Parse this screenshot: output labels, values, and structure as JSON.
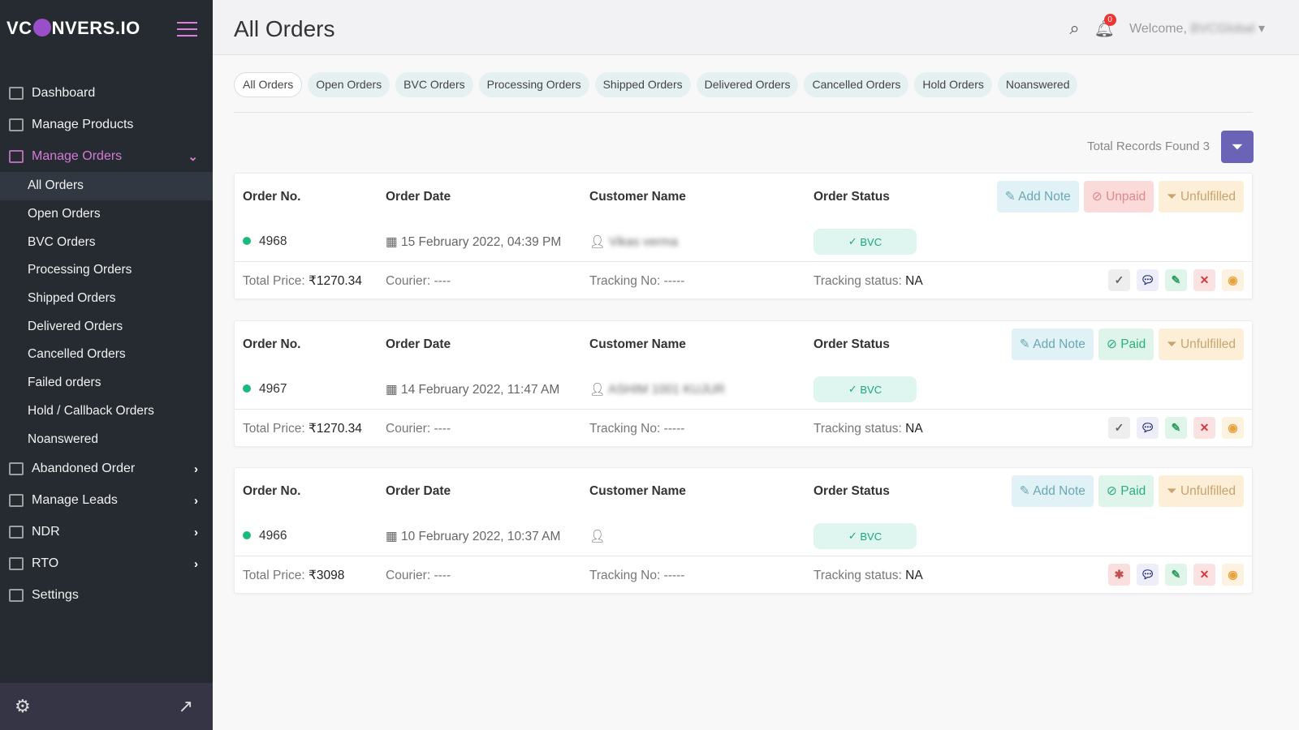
{
  "brand": {
    "logo": "VCONVERS.IO"
  },
  "sidebar": {
    "top": [
      {
        "label": "Dashboard",
        "icon": "dashboard-icon"
      },
      {
        "label": "Manage Products",
        "icon": "products-icon"
      }
    ],
    "orders": {
      "label": "Manage Orders",
      "sub": [
        "All Orders",
        "Open Orders",
        "BVC Orders",
        "Processing Orders",
        "Shipped Orders",
        "Delivered Orders",
        "Cancelled Orders",
        "Failed orders",
        "Hold / Callback Orders",
        "Noanswered"
      ]
    },
    "bottom": [
      {
        "label": "Abandoned Order",
        "chev": true
      },
      {
        "label": "Manage Leads",
        "chev": true
      },
      {
        "label": "NDR",
        "chev": true
      },
      {
        "label": "RTO",
        "chev": true
      },
      {
        "label": "Settings",
        "chev": false
      }
    ]
  },
  "header": {
    "title": "All Orders",
    "welcome": "Welcome,",
    "user": "BVCGlobal",
    "notifications": "0"
  },
  "tabs": [
    "All Orders",
    "Open Orders",
    "BVC Orders",
    "Processing Orders",
    "Shipped Orders",
    "Delivered Orders",
    "Cancelled Orders",
    "Hold Orders",
    "Noanswered"
  ],
  "total_records": "Total Records Found 3",
  "labels": {
    "order_no": "Order No.",
    "order_date": "Order Date",
    "customer": "Customer Name",
    "status": "Order Status",
    "add_note": "Add Note",
    "unfulfilled": "Unfulfilled",
    "total_price": "Total Price:",
    "courier": "Courier:",
    "tracking_no": "Tracking No:",
    "tracking_status": "Tracking status:"
  },
  "orders": [
    {
      "no": "4968",
      "date": "15 February 2022, 04:39 PM",
      "customer": "Vikas verma",
      "status": "BVC",
      "payment": "Unpaid",
      "price": "₹1270.34",
      "courier": "----",
      "tracking": "-----",
      "tracking_status": "NA",
      "first_action": "check"
    },
    {
      "no": "4967",
      "date": "14 February 2022, 11:47 AM",
      "customer": "ASHIM 1001 KUJUR",
      "status": "BVC",
      "payment": "Paid",
      "price": "₹1270.34",
      "courier": "----",
      "tracking": "-----",
      "tracking_status": "NA",
      "first_action": "check"
    },
    {
      "no": "4966",
      "date": "10 February 2022, 10:37 AM",
      "customer": "",
      "status": "BVC",
      "payment": "Paid",
      "price": "₹3098",
      "courier": "----",
      "tracking": "-----",
      "tracking_status": "NA",
      "first_action": "bug"
    }
  ]
}
